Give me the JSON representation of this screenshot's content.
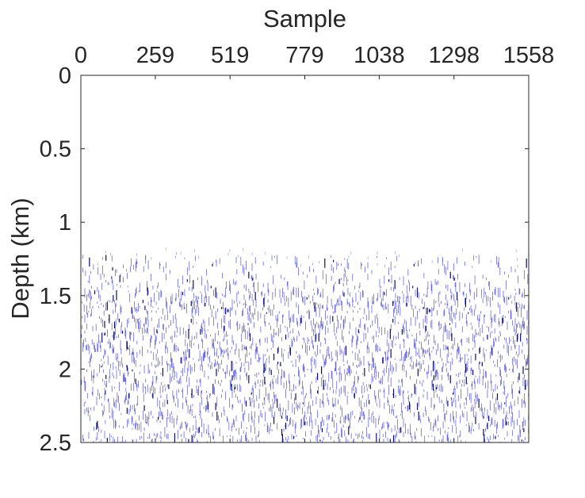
{
  "chart_data": {
    "type": "heatmap",
    "title": "",
    "xlabel": "Sample",
    "ylabel": "Depth (km)",
    "x_axis_position": "top",
    "y_axis_direction": "reversed",
    "xlim": [
      0,
      1558
    ],
    "ylim": [
      0,
      2.5
    ],
    "xticks": [
      0,
      259,
      519,
      779,
      1038,
      1298,
      1558
    ],
    "xtick_labels": [
      "0",
      "259",
      "519",
      "779",
      "1038",
      "1298",
      "1558"
    ],
    "yticks": [
      0,
      0.5,
      1,
      1.5,
      2,
      2.5
    ],
    "ytick_labels": [
      "0",
      "0.5",
      "1",
      "1.5",
      "2",
      "2.5"
    ],
    "grid": false,
    "colors": {
      "events": "#1a1acc",
      "strong_events": "#000066",
      "axes": "#262626",
      "background": "#ffffff"
    },
    "description_values": {
      "event_onset_depth_km": 1.22,
      "dense_depth_range_km": [
        1.22,
        2.5
      ]
    }
  }
}
